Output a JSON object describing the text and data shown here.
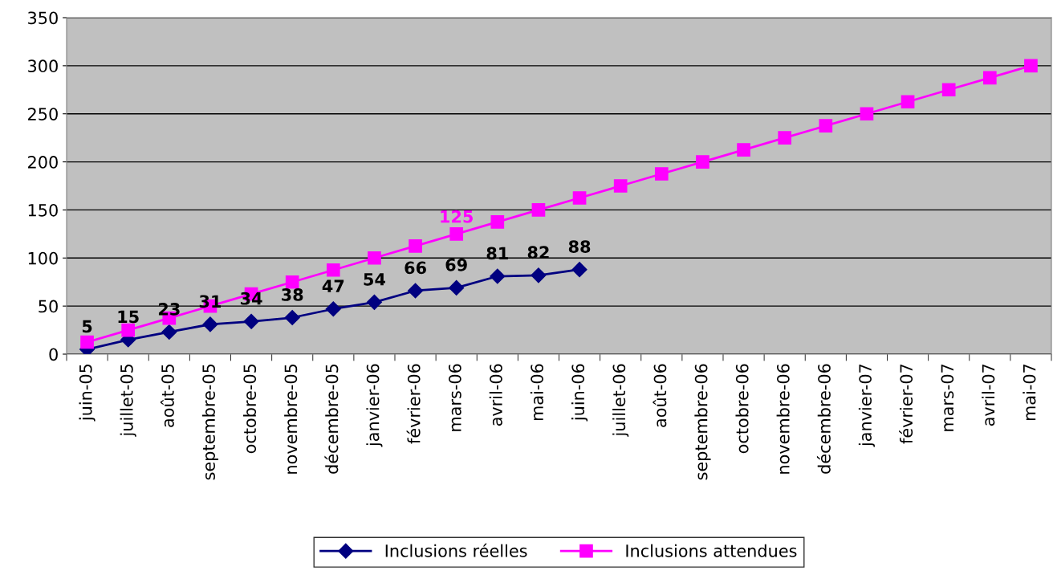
{
  "chart_data": {
    "type": "line",
    "categories": [
      "juin-05",
      "juillet-05",
      "août-05",
      "septembre-05",
      "octobre-05",
      "novembre-05",
      "décembre-05",
      "janvier-06",
      "février-06",
      "mars-06",
      "avril-06",
      "mai-06",
      "juin-06",
      "juillet-06",
      "août-06",
      "septembre-06",
      "octobre-06",
      "novembre-06",
      "décembre-06",
      "janvier-07",
      "février-07",
      "mars-07",
      "avril-07",
      "mai-07"
    ],
    "series": [
      {
        "name": "Inclusions réelles",
        "color": "#000080",
        "marker": "diamond",
        "values": [
          5,
          15,
          23,
          31,
          34,
          38,
          47,
          54,
          66,
          69,
          81,
          82,
          88,
          null,
          null,
          null,
          null,
          null,
          null,
          null,
          null,
          null,
          null,
          null
        ],
        "value_labels": [
          "5",
          "15",
          "23",
          "31",
          "34",
          "38",
          "47",
          "54",
          "66",
          "69",
          "81",
          "82",
          "88",
          null,
          null,
          null,
          null,
          null,
          null,
          null,
          null,
          null,
          null,
          null
        ]
      },
      {
        "name": "Inclusions attendues",
        "color": "#ff00ff",
        "marker": "square",
        "values": [
          12.5,
          25,
          37.5,
          50,
          62.5,
          75,
          87.5,
          100,
          112.5,
          125,
          137.5,
          150,
          162.5,
          175,
          187.5,
          200,
          212.5,
          225,
          237.5,
          250,
          262.5,
          275,
          287.5,
          300
        ],
        "value_labels": [
          null,
          null,
          null,
          null,
          null,
          null,
          null,
          null,
          null,
          "125",
          null,
          null,
          null,
          null,
          null,
          null,
          null,
          null,
          null,
          null,
          null,
          null,
          null,
          null
        ]
      }
    ],
    "ylim": [
      0,
      350
    ],
    "yticks": [
      0,
      50,
      100,
      150,
      200,
      250,
      300,
      350
    ],
    "grid": "y",
    "legend": "bottom",
    "line_style": "solid"
  }
}
